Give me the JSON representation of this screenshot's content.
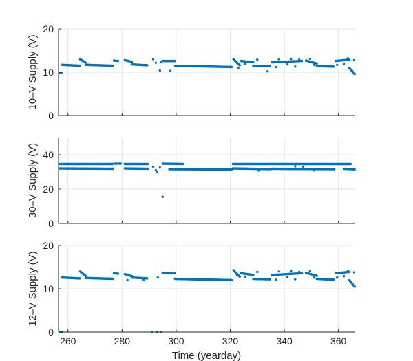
{
  "figure": {
    "xlabel": "Time (yearday)",
    "marker_color": "#0072BD",
    "axes_color": "#262626",
    "grid_color": "#e6e6e6"
  },
  "chart_data": [
    {
      "type": "scatter",
      "ylabel": "10–V Supply (V)",
      "xlim": [
        256.5,
        366.2
      ],
      "ylim": [
        0,
        20
      ],
      "xticks": [
        260,
        280,
        300,
        320,
        340,
        360
      ],
      "yticks": [
        0,
        10,
        20
      ],
      "show_xtick_labels": false,
      "grid": true,
      "segments": [
        {
          "x0": 257.0,
          "x1": 257.6,
          "y0": 9.9,
          "y1": 9.9,
          "step": 0.3
        },
        {
          "x0": 257.8,
          "x1": 264.3,
          "y0": 11.7,
          "y1": 11.5,
          "step": 0.25
        },
        {
          "x0": 264.5,
          "x1": 266.5,
          "y0": 13.0,
          "y1": 12.2,
          "step": 0.25
        },
        {
          "x0": 266.5,
          "x1": 276.6,
          "y0": 11.7,
          "y1": 11.5,
          "step": 0.25
        },
        {
          "x0": 277.0,
          "x1": 278.5,
          "y0": 12.7,
          "y1": 12.6,
          "step": 0.5
        },
        {
          "x0": 281.0,
          "x1": 283.6,
          "y0": 12.8,
          "y1": 12.4,
          "step": 0.3
        },
        {
          "x0": 283.6,
          "x1": 289.3,
          "y0": 11.8,
          "y1": 11.6,
          "step": 0.25
        },
        {
          "x0": 295.0,
          "x1": 299.5,
          "y0": 12.6,
          "y1": 12.6,
          "step": 0.25
        },
        {
          "x0": 299.6,
          "x1": 320.5,
          "y0": 11.5,
          "y1": 11.2,
          "step": 0.25
        },
        {
          "x0": 321.2,
          "x1": 323.5,
          "y0": 13.0,
          "y1": 11.6,
          "step": 0.3
        },
        {
          "x0": 324.0,
          "x1": 328.5,
          "y0": 12.6,
          "y1": 12.3,
          "step": 0.3
        },
        {
          "x0": 328.5,
          "x1": 334.7,
          "y0": 11.5,
          "y1": 11.4,
          "step": 0.25
        },
        {
          "x0": 335.5,
          "x1": 346.5,
          "y0": 12.3,
          "y1": 12.6,
          "step": 0.35
        },
        {
          "x0": 348.0,
          "x1": 352.0,
          "y0": 12.7,
          "y1": 12.0,
          "step": 0.3
        },
        {
          "x0": 352.0,
          "x1": 358.2,
          "y0": 11.4,
          "y1": 11.3,
          "step": 0.25
        },
        {
          "x0": 359.0,
          "x1": 364.0,
          "y0": 12.6,
          "y1": 12.9,
          "step": 0.25
        },
        {
          "x0": 364.0,
          "x1": 366.0,
          "y0": 11.0,
          "y1": 9.6,
          "step": 0.3
        }
      ],
      "points": [
        [
          291.5,
          13.0
        ],
        [
          292.5,
          12.2
        ],
        [
          294.0,
          10.4
        ],
        [
          297.8,
          10.3
        ],
        [
          294.5,
          12.3
        ],
        [
          322.5,
          12.2
        ],
        [
          323.0,
          11.0
        ],
        [
          325.5,
          11.9
        ],
        [
          330.0,
          12.9
        ],
        [
          333.8,
          10.2
        ],
        [
          336.8,
          11.2
        ],
        [
          338.0,
          13.0
        ],
        [
          341.0,
          11.8
        ],
        [
          342.5,
          13.1
        ],
        [
          344.0,
          11.3
        ],
        [
          345.5,
          12.9
        ],
        [
          349.5,
          13.1
        ],
        [
          351.0,
          11.7
        ],
        [
          362.0,
          11.9
        ],
        [
          363.5,
          13.2
        ],
        [
          365.8,
          12.8
        ],
        [
          359.5,
          11.7
        ]
      ]
    },
    {
      "type": "scatter",
      "ylabel": "30–V Supply (V)",
      "xlim": [
        256.5,
        366.2
      ],
      "ylim": [
        0,
        50
      ],
      "xticks": [
        260,
        280,
        300,
        320,
        340,
        360
      ],
      "yticks": [
        0,
        20,
        40
      ],
      "show_xtick_labels": false,
      "grid": true,
      "segments": [
        {
          "x0": 257.0,
          "x1": 276.5,
          "y0": 34.6,
          "y1": 34.6,
          "step": 0.3
        },
        {
          "x0": 257.0,
          "x1": 276.5,
          "y0": 32.0,
          "y1": 31.8,
          "step": 0.3
        },
        {
          "x0": 277.5,
          "x1": 279.5,
          "y0": 34.8,
          "y1": 34.8,
          "step": 0.5
        },
        {
          "x0": 281.0,
          "x1": 289.5,
          "y0": 34.6,
          "y1": 34.6,
          "step": 0.3
        },
        {
          "x0": 281.0,
          "x1": 289.5,
          "y0": 32.0,
          "y1": 31.8,
          "step": 0.3
        },
        {
          "x0": 295.0,
          "x1": 302.5,
          "y0": 34.8,
          "y1": 34.6,
          "step": 0.25
        },
        {
          "x0": 297.5,
          "x1": 320.5,
          "y0": 31.6,
          "y1": 31.4,
          "step": 0.25
        },
        {
          "x0": 321.0,
          "x1": 335.0,
          "y0": 34.6,
          "y1": 34.6,
          "step": 0.3
        },
        {
          "x0": 321.0,
          "x1": 335.0,
          "y0": 32.0,
          "y1": 31.6,
          "step": 0.3
        },
        {
          "x0": 335.5,
          "x1": 358.5,
          "y0": 34.6,
          "y1": 34.6,
          "step": 0.3
        },
        {
          "x0": 335.5,
          "x1": 358.5,
          "y0": 31.8,
          "y1": 31.6,
          "step": 0.3
        },
        {
          "x0": 359.0,
          "x1": 364.5,
          "y0": 34.6,
          "y1": 34.6,
          "step": 0.25
        },
        {
          "x0": 362.0,
          "x1": 366.0,
          "y0": 31.8,
          "y1": 31.5,
          "step": 0.3
        }
      ],
      "points": [
        [
          291.5,
          33.0
        ],
        [
          292.5,
          31.0
        ],
        [
          293.0,
          29.8
        ],
        [
          294.0,
          32.5
        ],
        [
          295.0,
          15.5
        ],
        [
          330.5,
          30.8
        ],
        [
          344.0,
          33.2
        ],
        [
          347.0,
          33.0
        ],
        [
          351.0,
          30.9
        ]
      ]
    },
    {
      "type": "scatter",
      "ylabel": "12–V Supply (V)",
      "xlim": [
        256.5,
        366.2
      ],
      "ylim": [
        0,
        20
      ],
      "xticks": [
        260,
        280,
        300,
        320,
        340,
        360
      ],
      "yticks": [
        0,
        10,
        20
      ],
      "show_xtick_labels": true,
      "grid": true,
      "segments": [
        {
          "x0": 257.0,
          "x1": 257.9,
          "y0": 0.0,
          "y1": 0.0,
          "step": 0.3
        },
        {
          "x0": 257.8,
          "x1": 264.3,
          "y0": 12.6,
          "y1": 12.4,
          "step": 0.25
        },
        {
          "x0": 264.5,
          "x1": 266.5,
          "y0": 14.0,
          "y1": 13.0,
          "step": 0.25
        },
        {
          "x0": 266.5,
          "x1": 276.6,
          "y0": 12.5,
          "y1": 12.3,
          "step": 0.25
        },
        {
          "x0": 277.0,
          "x1": 278.5,
          "y0": 13.6,
          "y1": 13.5,
          "step": 0.5
        },
        {
          "x0": 281.0,
          "x1": 283.6,
          "y0": 13.4,
          "y1": 12.9,
          "step": 0.3
        },
        {
          "x0": 283.6,
          "x1": 289.3,
          "y0": 12.6,
          "y1": 12.4,
          "step": 0.25
        },
        {
          "x0": 295.0,
          "x1": 299.5,
          "y0": 13.6,
          "y1": 13.6,
          "step": 0.25
        },
        {
          "x0": 299.6,
          "x1": 320.5,
          "y0": 12.3,
          "y1": 12.0,
          "step": 0.25
        },
        {
          "x0": 321.2,
          "x1": 323.5,
          "y0": 14.3,
          "y1": 12.8,
          "step": 0.3
        },
        {
          "x0": 324.0,
          "x1": 328.5,
          "y0": 13.6,
          "y1": 13.2,
          "step": 0.3
        },
        {
          "x0": 328.5,
          "x1": 334.7,
          "y0": 12.3,
          "y1": 12.2,
          "step": 0.25
        },
        {
          "x0": 335.5,
          "x1": 346.5,
          "y0": 13.2,
          "y1": 13.6,
          "step": 0.35
        },
        {
          "x0": 348.0,
          "x1": 352.0,
          "y0": 13.7,
          "y1": 13.0,
          "step": 0.3
        },
        {
          "x0": 352.0,
          "x1": 358.2,
          "y0": 12.3,
          "y1": 12.1,
          "step": 0.25
        },
        {
          "x0": 359.0,
          "x1": 364.0,
          "y0": 13.6,
          "y1": 13.9,
          "step": 0.25
        },
        {
          "x0": 364.0,
          "x1": 366.0,
          "y0": 12.0,
          "y1": 10.5,
          "step": 0.3
        }
      ],
      "points": [
        [
          291.0,
          0.0
        ],
        [
          292.8,
          0.0
        ],
        [
          294.5,
          0.0
        ],
        [
          282.0,
          12.0
        ],
        [
          288.0,
          12.0
        ],
        [
          293.2,
          12.6
        ],
        [
          322.5,
          13.2
        ],
        [
          325.5,
          12.8
        ],
        [
          330.0,
          13.9
        ],
        [
          336.8,
          12.1
        ],
        [
          338.0,
          14.0
        ],
        [
          341.0,
          12.7
        ],
        [
          342.5,
          14.1
        ],
        [
          344.0,
          12.2
        ],
        [
          345.5,
          13.9
        ],
        [
          349.5,
          14.1
        ],
        [
          351.0,
          12.6
        ],
        [
          362.0,
          12.9
        ],
        [
          363.5,
          14.2
        ],
        [
          365.8,
          13.8
        ],
        [
          359.5,
          12.6
        ]
      ]
    }
  ]
}
